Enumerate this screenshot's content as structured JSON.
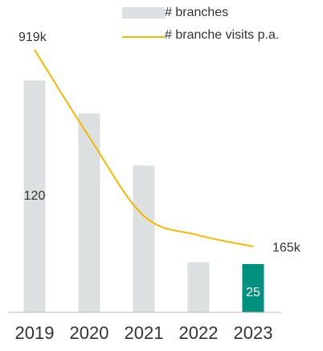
{
  "chart_data": {
    "type": "bar",
    "categories": [
      "2019",
      "2020",
      "2021",
      "2022",
      "2023"
    ],
    "series": [
      {
        "name": "# branches",
        "type": "bar",
        "color": "#dde0e0",
        "colors": [
          "#dde0e0",
          "#dde0e0",
          "#dde0e0",
          "#dde0e0",
          "#00927e"
        ],
        "values": [
          120,
          103,
          76,
          26,
          25
        ],
        "value_labels": [
          "120",
          null,
          null,
          null,
          "25"
        ]
      },
      {
        "name": "# branche visits p.a.",
        "type": "line",
        "axis": "y2",
        "color": "#f2b900",
        "values": [
          919000,
          585000,
          282000,
          208000,
          165000
        ],
        "value_labels": [
          "919k",
          null,
          null,
          null,
          "165k"
        ]
      }
    ],
    "ylim": [
      0,
      160
    ],
    "y2lim": [
      -88000,
      1098000
    ],
    "legend": "top"
  }
}
